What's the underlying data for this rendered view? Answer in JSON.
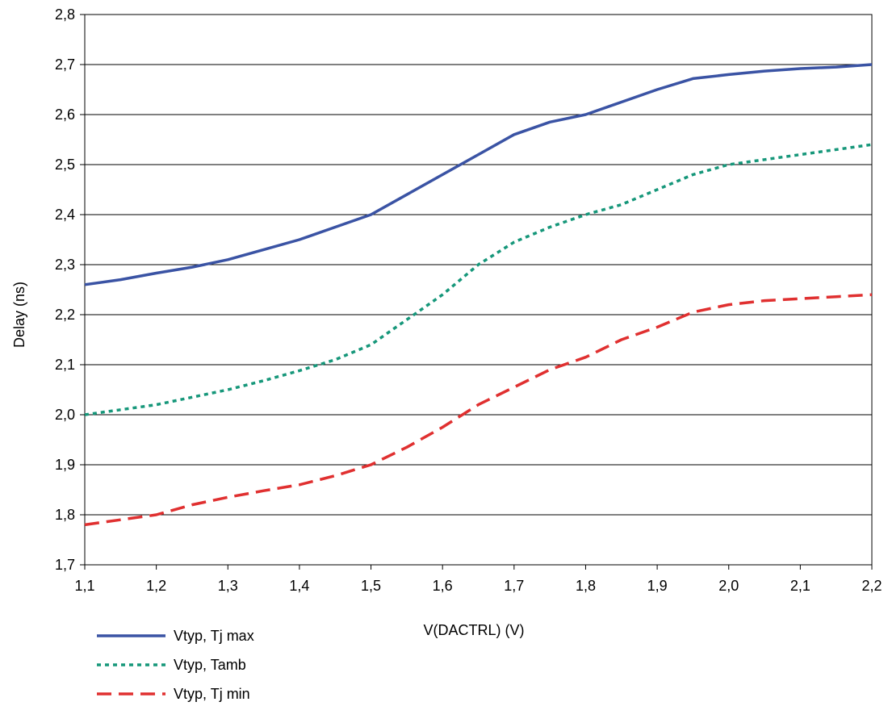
{
  "chart_data": {
    "type": "line",
    "title": "",
    "xlabel": "V(DACTRL) (V)",
    "ylabel": "Delay (ns)",
    "xlim": [
      1.1,
      2.2
    ],
    "ylim": [
      1.7,
      2.8
    ],
    "grid": "horizontal",
    "legend_position": "bottom-left",
    "x_tick_values": [
      1.1,
      1.2,
      1.3,
      1.4,
      1.5,
      1.6,
      1.7,
      1.8,
      1.9,
      2.0,
      2.1,
      2.2
    ],
    "x_tick_labels": [
      "1,1",
      "1,2",
      "1,3",
      "1,4",
      "1,5",
      "1,6",
      "1,7",
      "1,8",
      "1,9",
      "2,0",
      "2,1",
      "2,2"
    ],
    "y_tick_values": [
      1.7,
      1.8,
      1.9,
      2.0,
      2.1,
      2.2,
      2.3,
      2.4,
      2.5,
      2.6,
      2.7,
      2.8
    ],
    "y_tick_labels": [
      "1,7",
      "1,8",
      "1,9",
      "2,0",
      "2,1",
      "2,2",
      "2,3",
      "2,4",
      "2,5",
      "2,6",
      "2,7",
      "2,8"
    ],
    "series": [
      {
        "name": "Vtyp, Tj max",
        "color": "#3a53a4",
        "style": "solid",
        "x": [
          1.1,
          1.15,
          1.2,
          1.25,
          1.3,
          1.35,
          1.4,
          1.45,
          1.5,
          1.55,
          1.6,
          1.65,
          1.7,
          1.75,
          1.8,
          1.85,
          1.9,
          1.95,
          2.0,
          2.05,
          2.1,
          2.15,
          2.2
        ],
        "y": [
          2.26,
          2.27,
          2.283,
          2.295,
          2.31,
          2.33,
          2.35,
          2.375,
          2.4,
          2.44,
          2.48,
          2.52,
          2.56,
          2.585,
          2.6,
          2.625,
          2.65,
          2.672,
          2.68,
          2.687,
          2.692,
          2.695,
          2.7
        ]
      },
      {
        "name": "Vtyp, Tamb",
        "color": "#16977a",
        "style": "dotted",
        "x": [
          1.1,
          1.15,
          1.2,
          1.25,
          1.3,
          1.35,
          1.4,
          1.45,
          1.5,
          1.55,
          1.6,
          1.65,
          1.7,
          1.75,
          1.8,
          1.85,
          1.9,
          1.95,
          2.0,
          2.05,
          2.1,
          2.15,
          2.2
        ],
        "y": [
          2.0,
          2.01,
          2.02,
          2.035,
          2.05,
          2.068,
          2.088,
          2.11,
          2.14,
          2.19,
          2.24,
          2.3,
          2.345,
          2.375,
          2.4,
          2.42,
          2.45,
          2.48,
          2.5,
          2.51,
          2.52,
          2.53,
          2.54
        ]
      },
      {
        "name": "Vtyp, Tj min",
        "color": "#e03030",
        "style": "dashed",
        "x": [
          1.1,
          1.15,
          1.2,
          1.25,
          1.3,
          1.35,
          1.4,
          1.45,
          1.5,
          1.55,
          1.6,
          1.65,
          1.7,
          1.75,
          1.8,
          1.85,
          1.9,
          1.95,
          2.0,
          2.05,
          2.1,
          2.15,
          2.2
        ],
        "y": [
          1.78,
          1.79,
          1.8,
          1.82,
          1.835,
          1.848,
          1.86,
          1.878,
          1.9,
          1.935,
          1.975,
          2.02,
          2.055,
          2.09,
          2.115,
          2.15,
          2.175,
          2.205,
          2.22,
          2.228,
          2.232,
          2.236,
          2.24
        ]
      }
    ]
  }
}
